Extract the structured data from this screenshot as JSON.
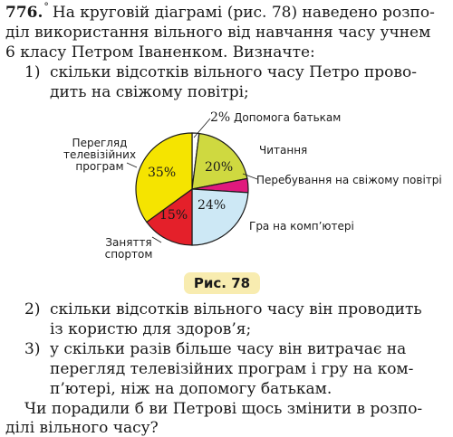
{
  "problem": {
    "number": "776.",
    "mark": "°",
    "intro_lines": [
      "На круговій діаграмі (рис. 78) наведено розпо-",
      "діл використання вільного від навчання часу учнем",
      "6 класу Петром Іваненком. Визначте:"
    ],
    "q1_marker": "1)",
    "q1_lines": [
      "скільки відсотків вільного часу Петро прово-",
      "дить на свіжому повітрі;"
    ],
    "q2_marker": "2)",
    "q2_lines": [
      "скільки відсотків вільного часу він проводить",
      "із користю для здоров’я;"
    ],
    "q3_marker": "3)",
    "q3_lines": [
      "у скільки разів більше часу він витрачає на",
      "перегляд телевізійних програм і гру на ком-",
      "п’ютері, ніж на допомогу батькам."
    ],
    "closing_lines": [
      "Чи порадили б ви Петрові щось змінити в розпо-",
      "ділі вільного часу?"
    ]
  },
  "figure": {
    "caption": "Рис. 78"
  },
  "chart_data": {
    "type": "pie",
    "title": "",
    "slices": [
      {
        "label": "Допомога батькам",
        "value": 2,
        "value_label": "2%",
        "color": "#ffffff"
      },
      {
        "label": "Читання",
        "value": 20,
        "value_label": "20%",
        "color": "#cfd940"
      },
      {
        "label": "Перебування на свіжому повітрі",
        "value": 4,
        "value_label": "",
        "color": "#e0197d"
      },
      {
        "label": "Гра на комп’ютері",
        "value": 24,
        "value_label": "24%",
        "color": "#cde8f5"
      },
      {
        "label": "Заняття спортом",
        "value": 15,
        "value_label": "15%",
        "color": "#e4202a"
      },
      {
        "label": "Перегляд телевізійних програм",
        "value": 35,
        "value_label": "35%",
        "color": "#f5e400"
      }
    ],
    "legend": "labels next to slices"
  }
}
